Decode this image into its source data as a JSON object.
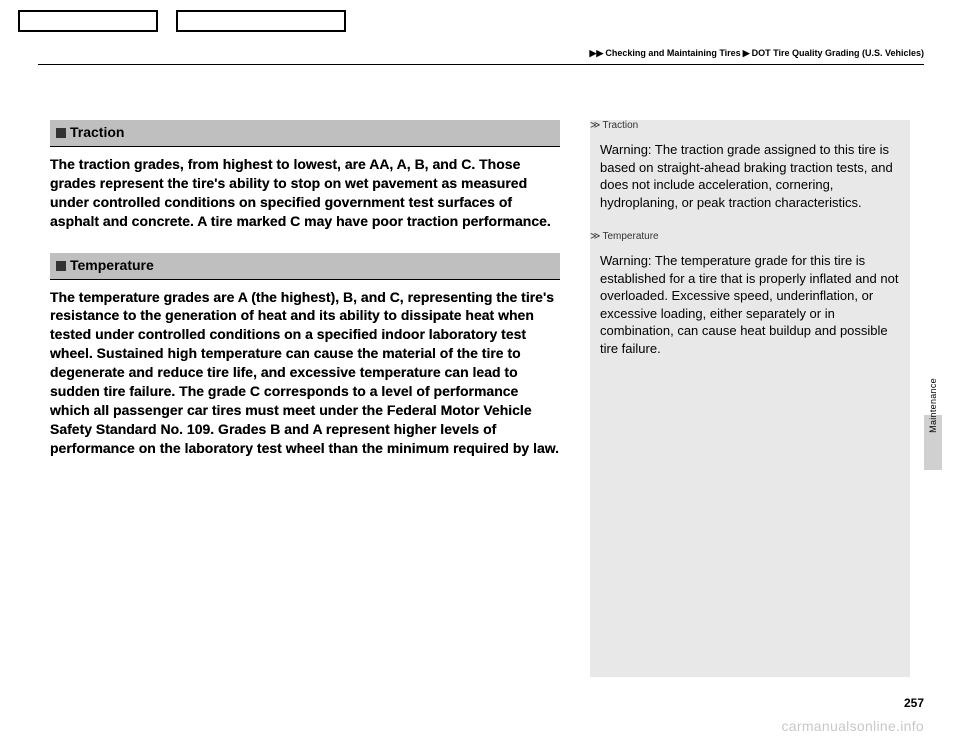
{
  "breadcrumb": {
    "a": "Checking and Maintaining Tires",
    "b": "DOT Tire Quality Grading (U.S. Vehicles)"
  },
  "sections": {
    "traction": {
      "title": "Traction",
      "body": "The traction grades, from highest to lowest, are AA, A, B, and C. Those grades represent the tire's ability to stop on wet pavement as measured under controlled conditions on specified government test surfaces of asphalt and concrete. A tire marked C may have poor traction performance."
    },
    "temperature": {
      "title": "Temperature",
      "body": "The temperature grades are A (the highest), B, and C, representing the tire's resistance to the generation of heat and its ability to dissipate heat when tested under controlled conditions on a specified indoor laboratory test wheel. Sustained high temperature can cause the material of the tire to degenerate and reduce tire life, and excessive temperature can lead to sudden tire failure. The grade C corresponds to a level of performance which all passenger car tires must meet under the Federal Motor Vehicle Safety Standard No. 109. Grades B and A represent higher levels of performance on the laboratory test wheel than the minimum required by law."
    }
  },
  "sidenotes": {
    "traction": {
      "label": "Traction",
      "body": "Warning: The traction grade assigned to this tire is based on straight-ahead braking traction tests, and does not include acceleration, cornering, hydroplaning, or peak traction characteristics."
    },
    "temperature": {
      "label": "Temperature",
      "body": "Warning: The temperature grade for this tire is established for a tire that is properly inflated and not overloaded. Excessive speed, underinflation, or excessive loading, either separately or in combination, can cause heat buildup and possible tire failure."
    }
  },
  "sideTab": "Maintenance",
  "pageNumber": "257",
  "watermark": "carmanualsonline.info",
  "colors": {
    "headerBg": "#bfbfbf",
    "sideBg": "#e8e8e8",
    "tabBg": "#d0d0d0",
    "watermark": "#c8c8c8"
  }
}
